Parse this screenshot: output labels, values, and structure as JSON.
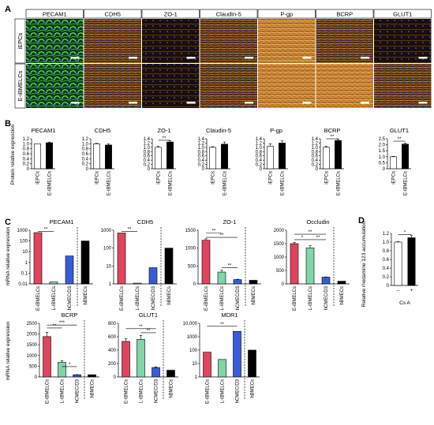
{
  "figure": {
    "panel_A": {
      "label": "A",
      "columns": [
        "PECAM1",
        "CDH5",
        "ZO-1",
        "Claudin-5",
        "P-gp",
        "BCRP",
        "GLUT1"
      ],
      "rows": [
        "iEPCs",
        "E-iBMELCs"
      ]
    },
    "panel_B": {
      "label": "B",
      "ylabel": "Protein relative expression"
    },
    "panel_C": {
      "label": "C",
      "ylabel": "mRNA relative expression"
    },
    "panel_D": {
      "label": "D",
      "ylabel": "Relative rhodamine 123 accumulation",
      "xlabel": "Cs A"
    }
  },
  "colors": {
    "white_bar": "#ffffff",
    "black_bar": "#000000",
    "red": "#e0445f",
    "green": "#7fd6a8",
    "blue": "#3a5bd9",
    "pecam_fluor": "#2fae3a",
    "marker_fluor": "#c88a2e",
    "nuclei": "#3040c0"
  },
  "chart_data": [
    {
      "panel": "B",
      "type": "bar",
      "title": "PECAM1",
      "categories": [
        "iEPCs",
        "E-iBMELCs"
      ],
      "values": [
        1.0,
        1.04
      ],
      "errors": [
        0,
        0.03
      ],
      "ylim": [
        0,
        1.2
      ],
      "yticks": [
        0,
        0.2,
        0.4,
        0.6,
        0.8,
        1.0,
        1.2
      ],
      "tick_labels": [
        "0",
        "0.2",
        "0.4",
        "0.6",
        "0.8",
        "1.0",
        "1.2"
      ],
      "colors": [
        "#ffffff",
        "#000000"
      ],
      "sig": []
    },
    {
      "panel": "B",
      "type": "bar",
      "title": "CDH5",
      "categories": [
        "iEPCs",
        "E-iBMELCs"
      ],
      "values": [
        1.0,
        0.95
      ],
      "errors": [
        0.02,
        0.05
      ],
      "ylim": [
        0,
        1.2
      ],
      "yticks": [
        0,
        0.2,
        0.4,
        0.6,
        0.8,
        1.0,
        1.2
      ],
      "tick_labels": [
        "0",
        "0.2",
        "0.4",
        "0.6",
        "0.8",
        "1.0",
        "1.2"
      ],
      "colors": [
        "#ffffff",
        "#000000"
      ],
      "sig": []
    },
    {
      "panel": "B",
      "type": "bar",
      "title": "ZO-1",
      "categories": [
        "iEPCs",
        "E-iBMELCs"
      ],
      "values": [
        1.0,
        1.25
      ],
      "errors": [
        0.05,
        0.05
      ],
      "ylim": [
        0,
        1.4
      ],
      "yticks": [
        0,
        0.2,
        0.4,
        0.6,
        0.8,
        1.0,
        1.2,
        1.4
      ],
      "tick_labels": [
        "0",
        "0.2",
        "0.4",
        "0.6",
        "0.8",
        "1.0",
        "1.2",
        "1.4"
      ],
      "colors": [
        "#ffffff",
        "#000000"
      ],
      "sig": [
        {
          "a": 0,
          "b": 1,
          "y": 1.33,
          "text": "**"
        }
      ]
    },
    {
      "panel": "B",
      "type": "bar",
      "title": "Claudin-5",
      "categories": [
        "iEPCs",
        "E-iBMELCs"
      ],
      "values": [
        1.0,
        1.15
      ],
      "errors": [
        0.03,
        0.1
      ],
      "ylim": [
        0,
        1.4
      ],
      "yticks": [
        0,
        0.2,
        0.4,
        0.6,
        0.8,
        1.0,
        1.2,
        1.4
      ],
      "tick_labels": [
        "0",
        "0.2",
        "0.4",
        "0.6",
        "0.8",
        "1.0",
        "1.2",
        "1.4"
      ],
      "colors": [
        "#ffffff",
        "#000000"
      ],
      "sig": []
    },
    {
      "panel": "B",
      "type": "bar",
      "title": "P-gp",
      "categories": [
        "iEPCs",
        "E-iBMELCs"
      ],
      "values": [
        1.05,
        1.2
      ],
      "errors": [
        0.12,
        0.1
      ],
      "ylim": [
        0,
        1.4
      ],
      "yticks": [
        0,
        0.2,
        0.4,
        0.6,
        0.8,
        1.0,
        1.2,
        1.4
      ],
      "tick_labels": [
        "0",
        "0.2",
        "0.4",
        "0.6",
        "0.8",
        "1.0",
        "1.2",
        "1.4"
      ],
      "colors": [
        "#ffffff",
        "#000000"
      ],
      "sig": []
    },
    {
      "panel": "B",
      "type": "bar",
      "title": "BCRP",
      "categories": [
        "iEPCs",
        "E-iBMELCs"
      ],
      "values": [
        1.0,
        1.32
      ],
      "errors": [
        0.05,
        0.05
      ],
      "ylim": [
        0,
        1.4
      ],
      "yticks": [
        0,
        0.2,
        0.4,
        0.6,
        0.8,
        1.0,
        1.2,
        1.4
      ],
      "tick_labels": [
        "0",
        "0.2",
        "0.4",
        "0.6",
        "0.8",
        "1.0",
        "1.2",
        "1.4"
      ],
      "colors": [
        "#ffffff",
        "#000000"
      ],
      "sig": [
        {
          "a": 0,
          "b": 1,
          "y": 1.4,
          "text": "**"
        }
      ]
    },
    {
      "panel": "B",
      "type": "bar",
      "title": "GLUT1",
      "categories": [
        "iEPCs",
        "E-iBMELCs"
      ],
      "values": [
        1.0,
        2.05
      ],
      "errors": [
        0.03,
        0.08
      ],
      "ylim": [
        0,
        2.5
      ],
      "yticks": [
        0,
        0.5,
        1.0,
        1.5,
        2.0,
        2.5
      ],
      "tick_labels": [
        "0",
        "0.5",
        "1.0",
        "1.5",
        "2.0",
        "2.5"
      ],
      "colors": [
        "#ffffff",
        "#000000"
      ],
      "sig": [
        {
          "a": 0,
          "b": 1,
          "y": 2.3,
          "text": "**"
        }
      ]
    },
    {
      "panel": "C",
      "type": "bar",
      "title": "PECAM1",
      "scale": "log",
      "categories": [
        "E-iBMELCs",
        "L-iBMELCs",
        "hCMEC/D3",
        "hBMECs"
      ],
      "values": [
        600,
        0.015,
        4,
        100
      ],
      "ylim": [
        0.01,
        1000
      ],
      "yticks": [
        0.01,
        0.1,
        1,
        10,
        100,
        1000
      ],
      "tick_labels": [
        "0.01",
        "0.1",
        "1",
        "10",
        "100",
        "1000"
      ],
      "colors": [
        "#e0445f",
        "#7fd6a8",
        "#3a5bd9",
        "#000000"
      ],
      "dashed_before": 3,
      "sig": [
        {
          "a": 0,
          "b": 1,
          "y": 800,
          "text": "**"
        }
      ]
    },
    {
      "panel": "C",
      "type": "bar",
      "title": "CDH5",
      "scale": "log",
      "categories": [
        "E-iBMELCs",
        "L-iBMELCs",
        "hCMEC/D3",
        "hBMECs"
      ],
      "values": [
        700,
        1.1,
        8,
        100
      ],
      "ylim": [
        1,
        1000
      ],
      "yticks": [
        1,
        10,
        100,
        1000
      ],
      "tick_labels": [
        "1",
        "10",
        "100",
        "1000"
      ],
      "colors": [
        "#e0445f",
        "#7fd6a8",
        "#3a5bd9",
        "#000000"
      ],
      "dashed_before": 3,
      "sig": [
        {
          "a": 0,
          "b": 1,
          "y": 850,
          "text": "**"
        }
      ]
    },
    {
      "panel": "C",
      "type": "bar",
      "title": "ZO-1",
      "categories": [
        "E-iBMELCs",
        "L-iBMELCs",
        "hCMEC/D3",
        "hBMECs"
      ],
      "values": [
        1220,
        330,
        120,
        100
      ],
      "errors": [
        40,
        50,
        10,
        0
      ],
      "ylim": [
        0,
        1500
      ],
      "yticks": [
        0,
        500,
        1000,
        1500
      ],
      "tick_labels": [
        "0",
        "500",
        "1000",
        "1500"
      ],
      "colors": [
        "#e0445f",
        "#7fd6a8",
        "#3a5bd9",
        "#000000"
      ],
      "dashed_before": 3,
      "sig": [
        {
          "a": 0,
          "b": 1,
          "y": 1420,
          "text": "**"
        },
        {
          "a": 0,
          "b": 2,
          "y": 1300,
          "text": "**"
        },
        {
          "a": 1,
          "b": 2,
          "y": 450,
          "text": "**"
        }
      ]
    },
    {
      "panel": "C",
      "type": "bar",
      "title": "Occludin",
      "categories": [
        "E-iBMELCs",
        "L-iBMELCs",
        "hCMEC/D3",
        "hBMECs"
      ],
      "values": [
        1500,
        1340,
        250,
        100
      ],
      "errors": [
        40,
        80,
        10,
        0
      ],
      "ylim": [
        0,
        2000
      ],
      "yticks": [
        0,
        500,
        1000,
        1500,
        2000
      ],
      "tick_labels": [
        "0",
        "500",
        "1000",
        "1500",
        "2000"
      ],
      "colors": [
        "#e0445f",
        "#7fd6a8",
        "#3a5bd9",
        "#000000"
      ],
      "dashed_before": 3,
      "sig": [
        {
          "a": 0,
          "b": 2,
          "y": 1850,
          "text": "**"
        },
        {
          "a": 0,
          "b": 1,
          "y": 1650,
          "text": "*"
        },
        {
          "a": 1,
          "b": 2,
          "y": 1650,
          "text": "**"
        }
      ]
    },
    {
      "panel": "C",
      "type": "bar",
      "title": "BCRP",
      "categories": [
        "E-iBMELCs",
        "L-iBMELCs",
        "hCMEC/D3",
        "hBMECs"
      ],
      "values": [
        1880,
        680,
        100,
        100
      ],
      "errors": [
        200,
        80,
        10,
        0
      ],
      "ylim": [
        0,
        2500
      ],
      "yticks": [
        0,
        500,
        1000,
        1500,
        2000,
        2500
      ],
      "tick_labels": [
        "0",
        "500",
        "1000",
        "1500",
        "2000",
        "2500"
      ],
      "colors": [
        "#e0445f",
        "#7fd6a8",
        "#3a5bd9",
        "#000000"
      ],
      "dashed_before": 3,
      "sig": [
        {
          "a": 0,
          "b": 2,
          "y": 2420,
          "text": "***"
        },
        {
          "a": 0,
          "b": 1,
          "y": 2280,
          "text": "**"
        },
        {
          "a": 1,
          "b": 2,
          "y": 480,
          "text": "*"
        }
      ]
    },
    {
      "panel": "C",
      "type": "bar",
      "title": "GLUT1",
      "categories": [
        "E-iBMELCs",
        "L-iBMELCs",
        "hCMEC/D3",
        "hBMECs"
      ],
      "values": [
        530,
        560,
        140,
        100
      ],
      "errors": [
        40,
        60,
        10,
        0
      ],
      "ylim": [
        0,
        800
      ],
      "yticks": [
        0,
        200,
        400,
        600,
        800
      ],
      "tick_labels": [
        "0",
        "200",
        "400",
        "600",
        "800"
      ],
      "colors": [
        "#e0445f",
        "#7fd6a8",
        "#3a5bd9",
        "#000000"
      ],
      "dashed_before": 3,
      "sig": [
        {
          "a": 0,
          "b": 2,
          "y": 720,
          "text": "**"
        },
        {
          "a": 1,
          "b": 2,
          "y": 660,
          "text": "**"
        }
      ]
    },
    {
      "panel": "C",
      "type": "bar",
      "title": "MDR1",
      "scale": "log",
      "categories": [
        "E-iBMELCs",
        "L-iBMELCs",
        "hCMEC/D3",
        "hBMECs"
      ],
      "values": [
        70,
        20,
        2500,
        100
      ],
      "ylim": [
        1,
        10000
      ],
      "yticks": [
        1,
        10,
        100,
        1000,
        10000
      ],
      "tick_labels": [
        "1",
        "10",
        "100",
        "1000",
        "10,000"
      ],
      "colors": [
        "#e0445f",
        "#7fd6a8",
        "#3a5bd9",
        "#000000"
      ],
      "dashed_before": 3,
      "sig": [
        {
          "a": 0,
          "b": 2,
          "y": 6000,
          "text": "**"
        }
      ]
    },
    {
      "panel": "D",
      "type": "bar",
      "title": "",
      "categories": [
        "–",
        "+"
      ],
      "values": [
        1.0,
        1.1
      ],
      "errors": [
        0.01,
        0.05
      ],
      "ylim": [
        0,
        1.2
      ],
      "yticks": [
        0,
        0.2,
        0.4,
        0.6,
        0.8,
        1.0,
        1.2
      ],
      "tick_labels": [
        "0",
        "0.2",
        "0.4",
        "0.6",
        "0.8",
        "1.0",
        "1.2"
      ],
      "colors": [
        "#ffffff",
        "#000000"
      ],
      "sig": [
        {
          "a": 0,
          "b": 1,
          "y": 1.17,
          "text": "*"
        }
      ]
    }
  ]
}
